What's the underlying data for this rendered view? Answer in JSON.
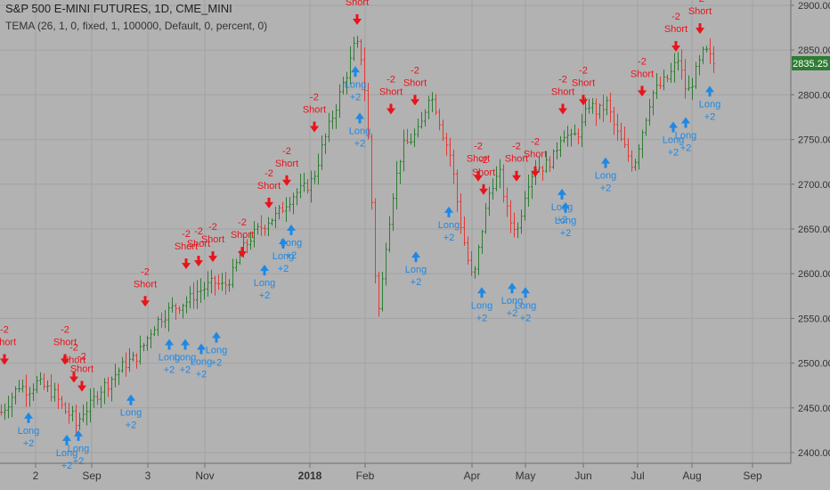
{
  "header": {
    "symbol_line": "S&P 500 E-MINI FUTURES, 1D, CME_MINI",
    "study_line": "TEMA (26, 1, 0, fixed, 1, 100000, Default, 0, percent, 0)"
  },
  "colors": {
    "background": "#b2b2b2",
    "grid": "#a3a3a3",
    "up_bar": "#2e7d32",
    "down_bar": "#e53935",
    "long_signal": "#1e88e5",
    "short_signal": "#e8141b",
    "price_tag": "#2e7d32"
  },
  "chart_data": {
    "type": "ohlc-bars",
    "y_axis": {
      "range": [
        2385,
        2910
      ],
      "ticks": [
        2400,
        2450,
        2500,
        2550,
        2600,
        2650,
        2700,
        2750,
        2800,
        2850,
        2900
      ]
    },
    "x_axis": {
      "tick_labels": [
        "2",
        "Sep",
        "3",
        "Nov",
        "2018",
        "Feb",
        "Apr",
        "May",
        "Jun",
        "Jul",
        "Aug",
        "Sep"
      ]
    },
    "last_price": "2835.25",
    "price_path": [
      [
        0,
        2445
      ],
      [
        10,
        2460
      ],
      [
        20,
        2475
      ],
      [
        30,
        2470
      ],
      [
        40,
        2478
      ],
      [
        50,
        2472
      ],
      [
        60,
        2465
      ],
      [
        70,
        2448
      ],
      [
        80,
        2440
      ],
      [
        85,
        2428
      ],
      [
        90,
        2445
      ],
      [
        100,
        2452
      ],
      [
        110,
        2470
      ],
      [
        120,
        2478
      ],
      [
        130,
        2490
      ],
      [
        140,
        2500
      ],
      [
        150,
        2505
      ],
      [
        160,
        2520
      ],
      [
        170,
        2540
      ],
      [
        180,
        2552
      ],
      [
        190,
        2560
      ],
      [
        200,
        2565
      ],
      [
        210,
        2570
      ],
      [
        220,
        2580
      ],
      [
        230,
        2585
      ],
      [
        240,
        2590
      ],
      [
        250,
        2585
      ],
      [
        260,
        2600
      ],
      [
        270,
        2625
      ],
      [
        280,
        2640
      ],
      [
        290,
        2650
      ],
      [
        300,
        2660
      ],
      [
        310,
        2665
      ],
      [
        320,
        2680
      ],
      [
        330,
        2690
      ],
      [
        340,
        2695
      ],
      [
        350,
        2705
      ],
      [
        360,
        2740
      ],
      [
        370,
        2770
      ],
      [
        380,
        2800
      ],
      [
        390,
        2830
      ],
      [
        398,
        2860
      ],
      [
        405,
        2840
      ],
      [
        410,
        2785
      ],
      [
        415,
        2700
      ],
      [
        420,
        2600
      ],
      [
        425,
        2550
      ],
      [
        430,
        2620
      ],
      [
        440,
        2690
      ],
      [
        450,
        2740
      ],
      [
        460,
        2750
      ],
      [
        470,
        2760
      ],
      [
        480,
        2800
      ],
      [
        487,
        2790
      ],
      [
        495,
        2760
      ],
      [
        505,
        2730
      ],
      [
        515,
        2660
      ],
      [
        525,
        2610
      ],
      [
        530,
        2590
      ],
      [
        540,
        2650
      ],
      [
        550,
        2700
      ],
      [
        560,
        2710
      ],
      [
        570,
        2660
      ],
      [
        580,
        2650
      ],
      [
        590,
        2700
      ],
      [
        600,
        2720
      ],
      [
        610,
        2720
      ],
      [
        620,
        2730
      ],
      [
        630,
        2760
      ],
      [
        640,
        2750
      ],
      [
        650,
        2760
      ],
      [
        660,
        2790
      ],
      [
        670,
        2780
      ],
      [
        680,
        2790
      ],
      [
        690,
        2760
      ],
      [
        700,
        2740
      ],
      [
        710,
        2720
      ],
      [
        720,
        2760
      ],
      [
        730,
        2800
      ],
      [
        740,
        2810
      ],
      [
        750,
        2820
      ],
      [
        760,
        2840
      ],
      [
        770,
        2800
      ],
      [
        780,
        2825
      ],
      [
        790,
        2850
      ],
      [
        800,
        2835
      ]
    ],
    "long_signals": [
      [
        32,
        2445
      ],
      [
        75,
        2420
      ],
      [
        88,
        2425
      ],
      [
        147,
        2465
      ],
      [
        190,
        2527
      ],
      [
        208,
        2527
      ],
      [
        226,
        2522
      ],
      [
        243,
        2535
      ],
      [
        297,
        2610
      ],
      [
        318,
        2640
      ],
      [
        327,
        2655
      ],
      [
        399,
        2832
      ],
      [
        404,
        2780
      ],
      [
        467,
        2625
      ],
      [
        504,
        2675
      ],
      [
        541,
        2585
      ],
      [
        575,
        2590
      ],
      [
        590,
        2585
      ],
      [
        631,
        2695
      ],
      [
        635,
        2680
      ],
      [
        680,
        2730
      ],
      [
        756,
        2770
      ],
      [
        770,
        2775
      ],
      [
        797,
        2810
      ]
    ],
    "short_signals": [
      [
        5,
        2510
      ],
      [
        73,
        2510
      ],
      [
        83,
        2490
      ],
      [
        92,
        2480
      ],
      [
        163,
        2575
      ],
      [
        209,
        2617
      ],
      [
        223,
        2620
      ],
      [
        239,
        2625
      ],
      [
        272,
        2630
      ],
      [
        302,
        2685
      ],
      [
        322,
        2710
      ],
      [
        353,
        2770
      ],
      [
        401,
        2890
      ],
      [
        439,
        2790
      ],
      [
        466,
        2800
      ],
      [
        537,
        2715
      ],
      [
        543,
        2700
      ],
      [
        580,
        2715
      ],
      [
        601,
        2720
      ],
      [
        632,
        2790
      ],
      [
        655,
        2800
      ],
      [
        721,
        2810
      ],
      [
        759,
        2860
      ],
      [
        786,
        2880
      ]
    ],
    "long_label": "Long",
    "long_qty": "+2",
    "short_label": "Short",
    "short_qty": "-2"
  }
}
